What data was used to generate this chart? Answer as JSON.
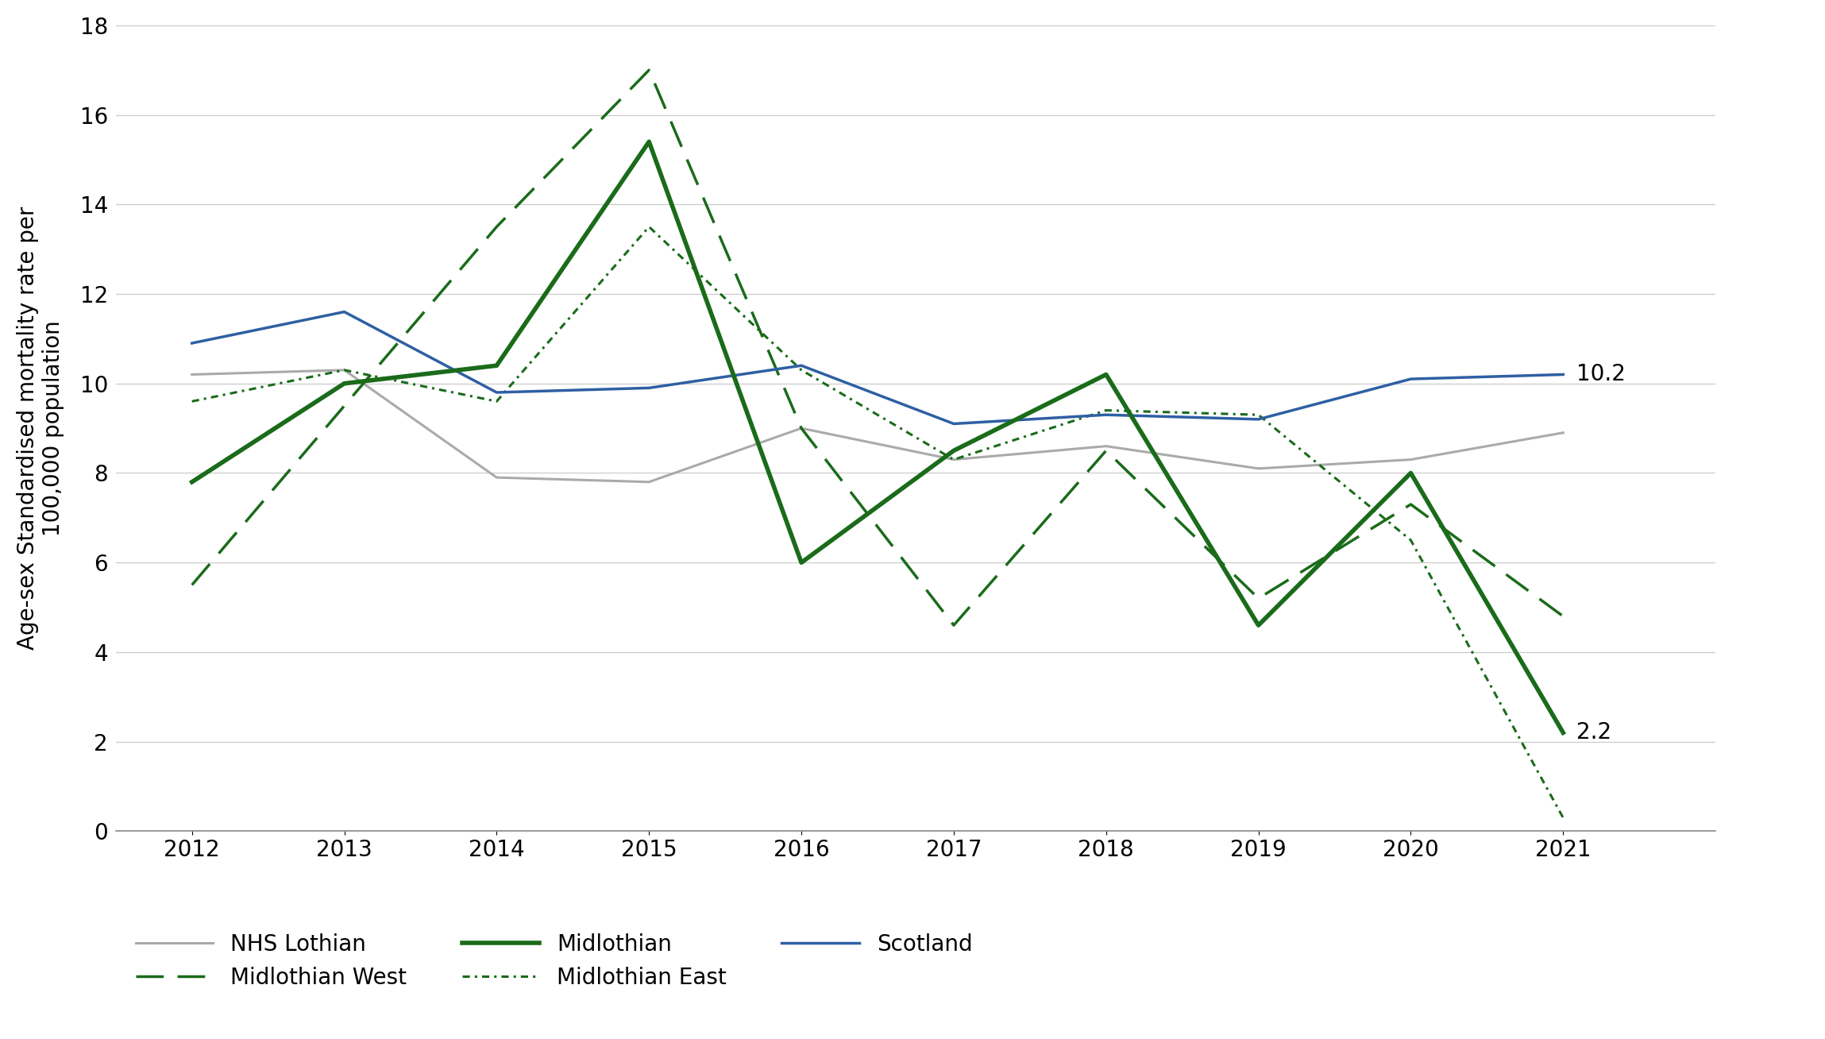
{
  "years": [
    2012,
    2013,
    2014,
    2015,
    2016,
    2017,
    2018,
    2019,
    2020,
    2021
  ],
  "nhs_lothian": [
    10.2,
    10.3,
    7.9,
    7.8,
    9.0,
    8.3,
    8.6,
    8.1,
    8.3,
    8.9
  ],
  "midlothian_west": [
    5.5,
    9.5,
    13.5,
    17.0,
    9.0,
    4.6,
    8.5,
    5.2,
    7.3,
    4.8
  ],
  "midlothian": [
    7.8,
    10.0,
    10.4,
    15.4,
    6.0,
    8.5,
    10.2,
    4.6,
    8.0,
    2.2
  ],
  "midlothian_east": [
    9.6,
    10.3,
    9.6,
    13.5,
    10.3,
    8.3,
    9.4,
    9.3,
    6.5,
    0.3
  ],
  "scotland": [
    10.9,
    11.6,
    9.8,
    9.9,
    10.4,
    9.1,
    9.3,
    9.2,
    10.1,
    10.2
  ],
  "nhs_lothian_color": "#aaaaaa",
  "midlothian_west_color": "#1a6b1a",
  "midlothian_color": "#1a6b1a",
  "midlothian_east_color": "#1a6b1a",
  "scotland_color": "#2e5fa3",
  "ylabel": "Age-sex Standardised mortality rate per\n100,000 population",
  "ylim": [
    0,
    18
  ],
  "yticks": [
    0,
    2,
    4,
    6,
    8,
    10,
    12,
    14,
    16,
    18
  ],
  "annotation_10_2": "10.2",
  "annotation_2_2": "2.2",
  "background_color": "#ffffff",
  "grid_color": "#cccccc",
  "legend_row1": [
    "NHS Lothian",
    "Midlothian West",
    "Midlothian"
  ],
  "legend_row2": [
    "Midlothian East",
    "Scotland"
  ]
}
